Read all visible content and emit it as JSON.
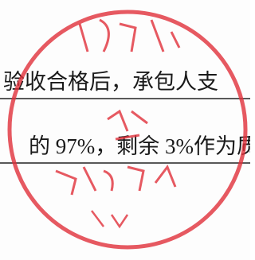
{
  "document": {
    "lines": [
      "验收合格后，承包人支",
      "的 97%，剩余 3%作为质"
    ]
  }
}
